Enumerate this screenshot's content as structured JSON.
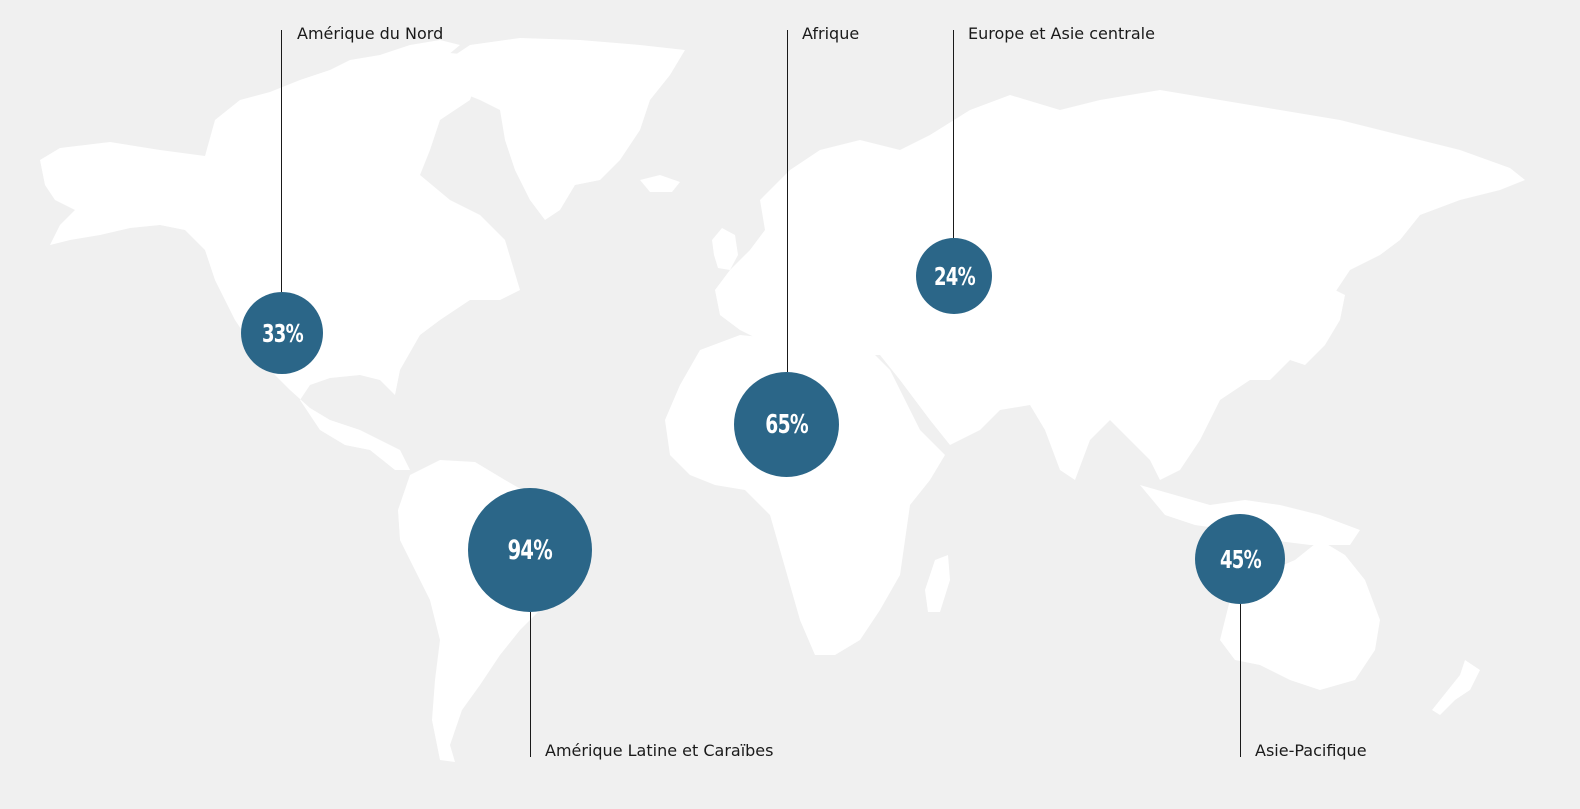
{
  "map": {
    "accent_color": "#2b6688",
    "land_color": "#ffffff",
    "background_color": "#f0f0f0",
    "regions": [
      {
        "id": "north-america",
        "label": "Amérique du Nord",
        "value_label": "33%",
        "value": 33
      },
      {
        "id": "latin-america",
        "label": "Amérique Latine et Caraïbes",
        "value_label": "94%",
        "value": 94
      },
      {
        "id": "africa",
        "label": "Afrique",
        "value_label": "65%",
        "value": 65
      },
      {
        "id": "europe-central-asia",
        "label": "Europe et Asie centrale",
        "value_label": "24%",
        "value": 24
      },
      {
        "id": "asia-pacific",
        "label": "Asie-Pacifique",
        "value_label": "45%",
        "value": 45
      }
    ]
  }
}
